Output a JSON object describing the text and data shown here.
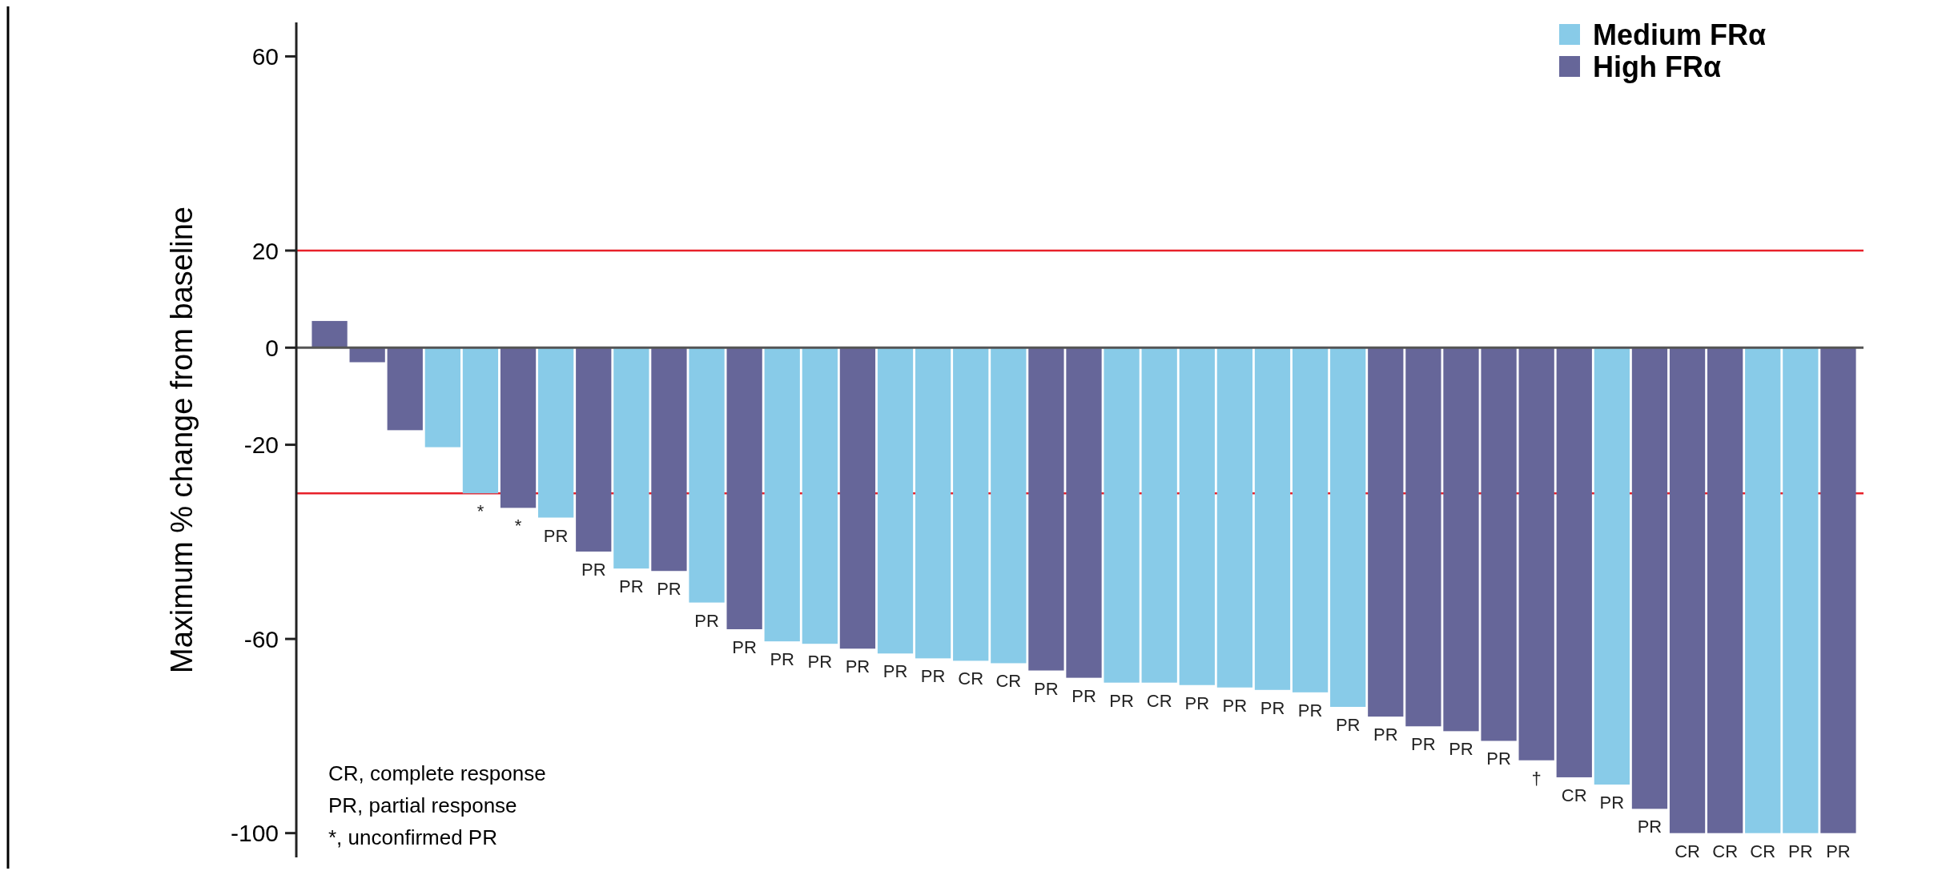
{
  "chart_data": {
    "type": "bar",
    "ylabel": "Maximum % change from baseline",
    "categories": [
      null,
      null,
      null,
      null,
      null,
      null,
      null,
      null,
      null,
      null,
      null,
      null,
      null,
      null,
      null,
      null,
      null,
      null,
      null,
      null,
      null,
      null,
      null,
      null,
      null,
      null,
      null,
      null,
      null,
      null,
      null,
      null,
      null,
      null,
      null,
      null,
      null,
      null,
      null,
      null,
      null
    ],
    "ylim": [
      -105,
      67
    ],
    "yticks": [
      60,
      20,
      0,
      -20,
      -60,
      -100
    ],
    "grid": false,
    "legend": "top right",
    "tick_labels": "y",
    "series": [
      {
        "name": "Medium FRα",
        "color": "#88cbe8",
        "values": [
          null,
          null,
          null,
          -20.5,
          -30,
          null,
          -35,
          null,
          -45.5,
          null,
          -52.5,
          null,
          -60.5,
          -61,
          null,
          -63,
          -64,
          -64.5,
          -65,
          null,
          null,
          -69,
          -69,
          -69.5,
          -70,
          -70.5,
          -71,
          -74,
          null,
          null,
          null,
          null,
          null,
          null,
          -90,
          null,
          null,
          null,
          -100,
          -100,
          null
        ],
        "value_labels": [
          null,
          null,
          null,
          null,
          "*",
          null,
          "PR",
          null,
          "PR",
          null,
          "PR",
          null,
          "PR",
          "PR",
          null,
          "PR",
          "PR",
          "CR",
          "CR",
          null,
          null,
          "PR",
          "CR",
          "PR",
          "PR",
          "PR",
          "PR",
          "PR",
          null,
          null,
          null,
          null,
          null,
          null,
          "PR",
          null,
          null,
          null,
          "CR",
          "PR",
          null
        ]
      },
      {
        "name": "High FRα",
        "color": "#666699",
        "values": [
          5.5,
          -3,
          -17,
          null,
          null,
          -33,
          null,
          -42,
          null,
          -46,
          null,
          -58,
          null,
          null,
          -62,
          null,
          null,
          null,
          null,
          -66.5,
          -68,
          null,
          null,
          null,
          null,
          null,
          null,
          null,
          -76,
          -78,
          -79,
          -81,
          -85,
          -88.5,
          null,
          -95,
          -100,
          -100,
          null,
          null,
          -100
        ],
        "value_labels": [
          null,
          null,
          null,
          null,
          null,
          "*",
          null,
          "PR",
          null,
          "PR",
          null,
          "PR",
          null,
          null,
          "PR",
          null,
          null,
          null,
          null,
          "PR",
          "PR",
          null,
          null,
          null,
          null,
          null,
          null,
          null,
          "PR",
          "PR",
          "PR",
          "PR",
          "†",
          "CR",
          null,
          "PR",
          "CR",
          "CR",
          null,
          null,
          "PR"
        ]
      }
    ],
    "ref_lines": [
      {
        "axis": "y",
        "value": 20,
        "color": "#e8202a"
      },
      {
        "axis": "y",
        "value": -30,
        "color": "#e8202a"
      }
    ],
    "annotations": [
      "CR, complete response",
      "PR, partial response",
      "*, unconfirmed PR"
    ]
  }
}
